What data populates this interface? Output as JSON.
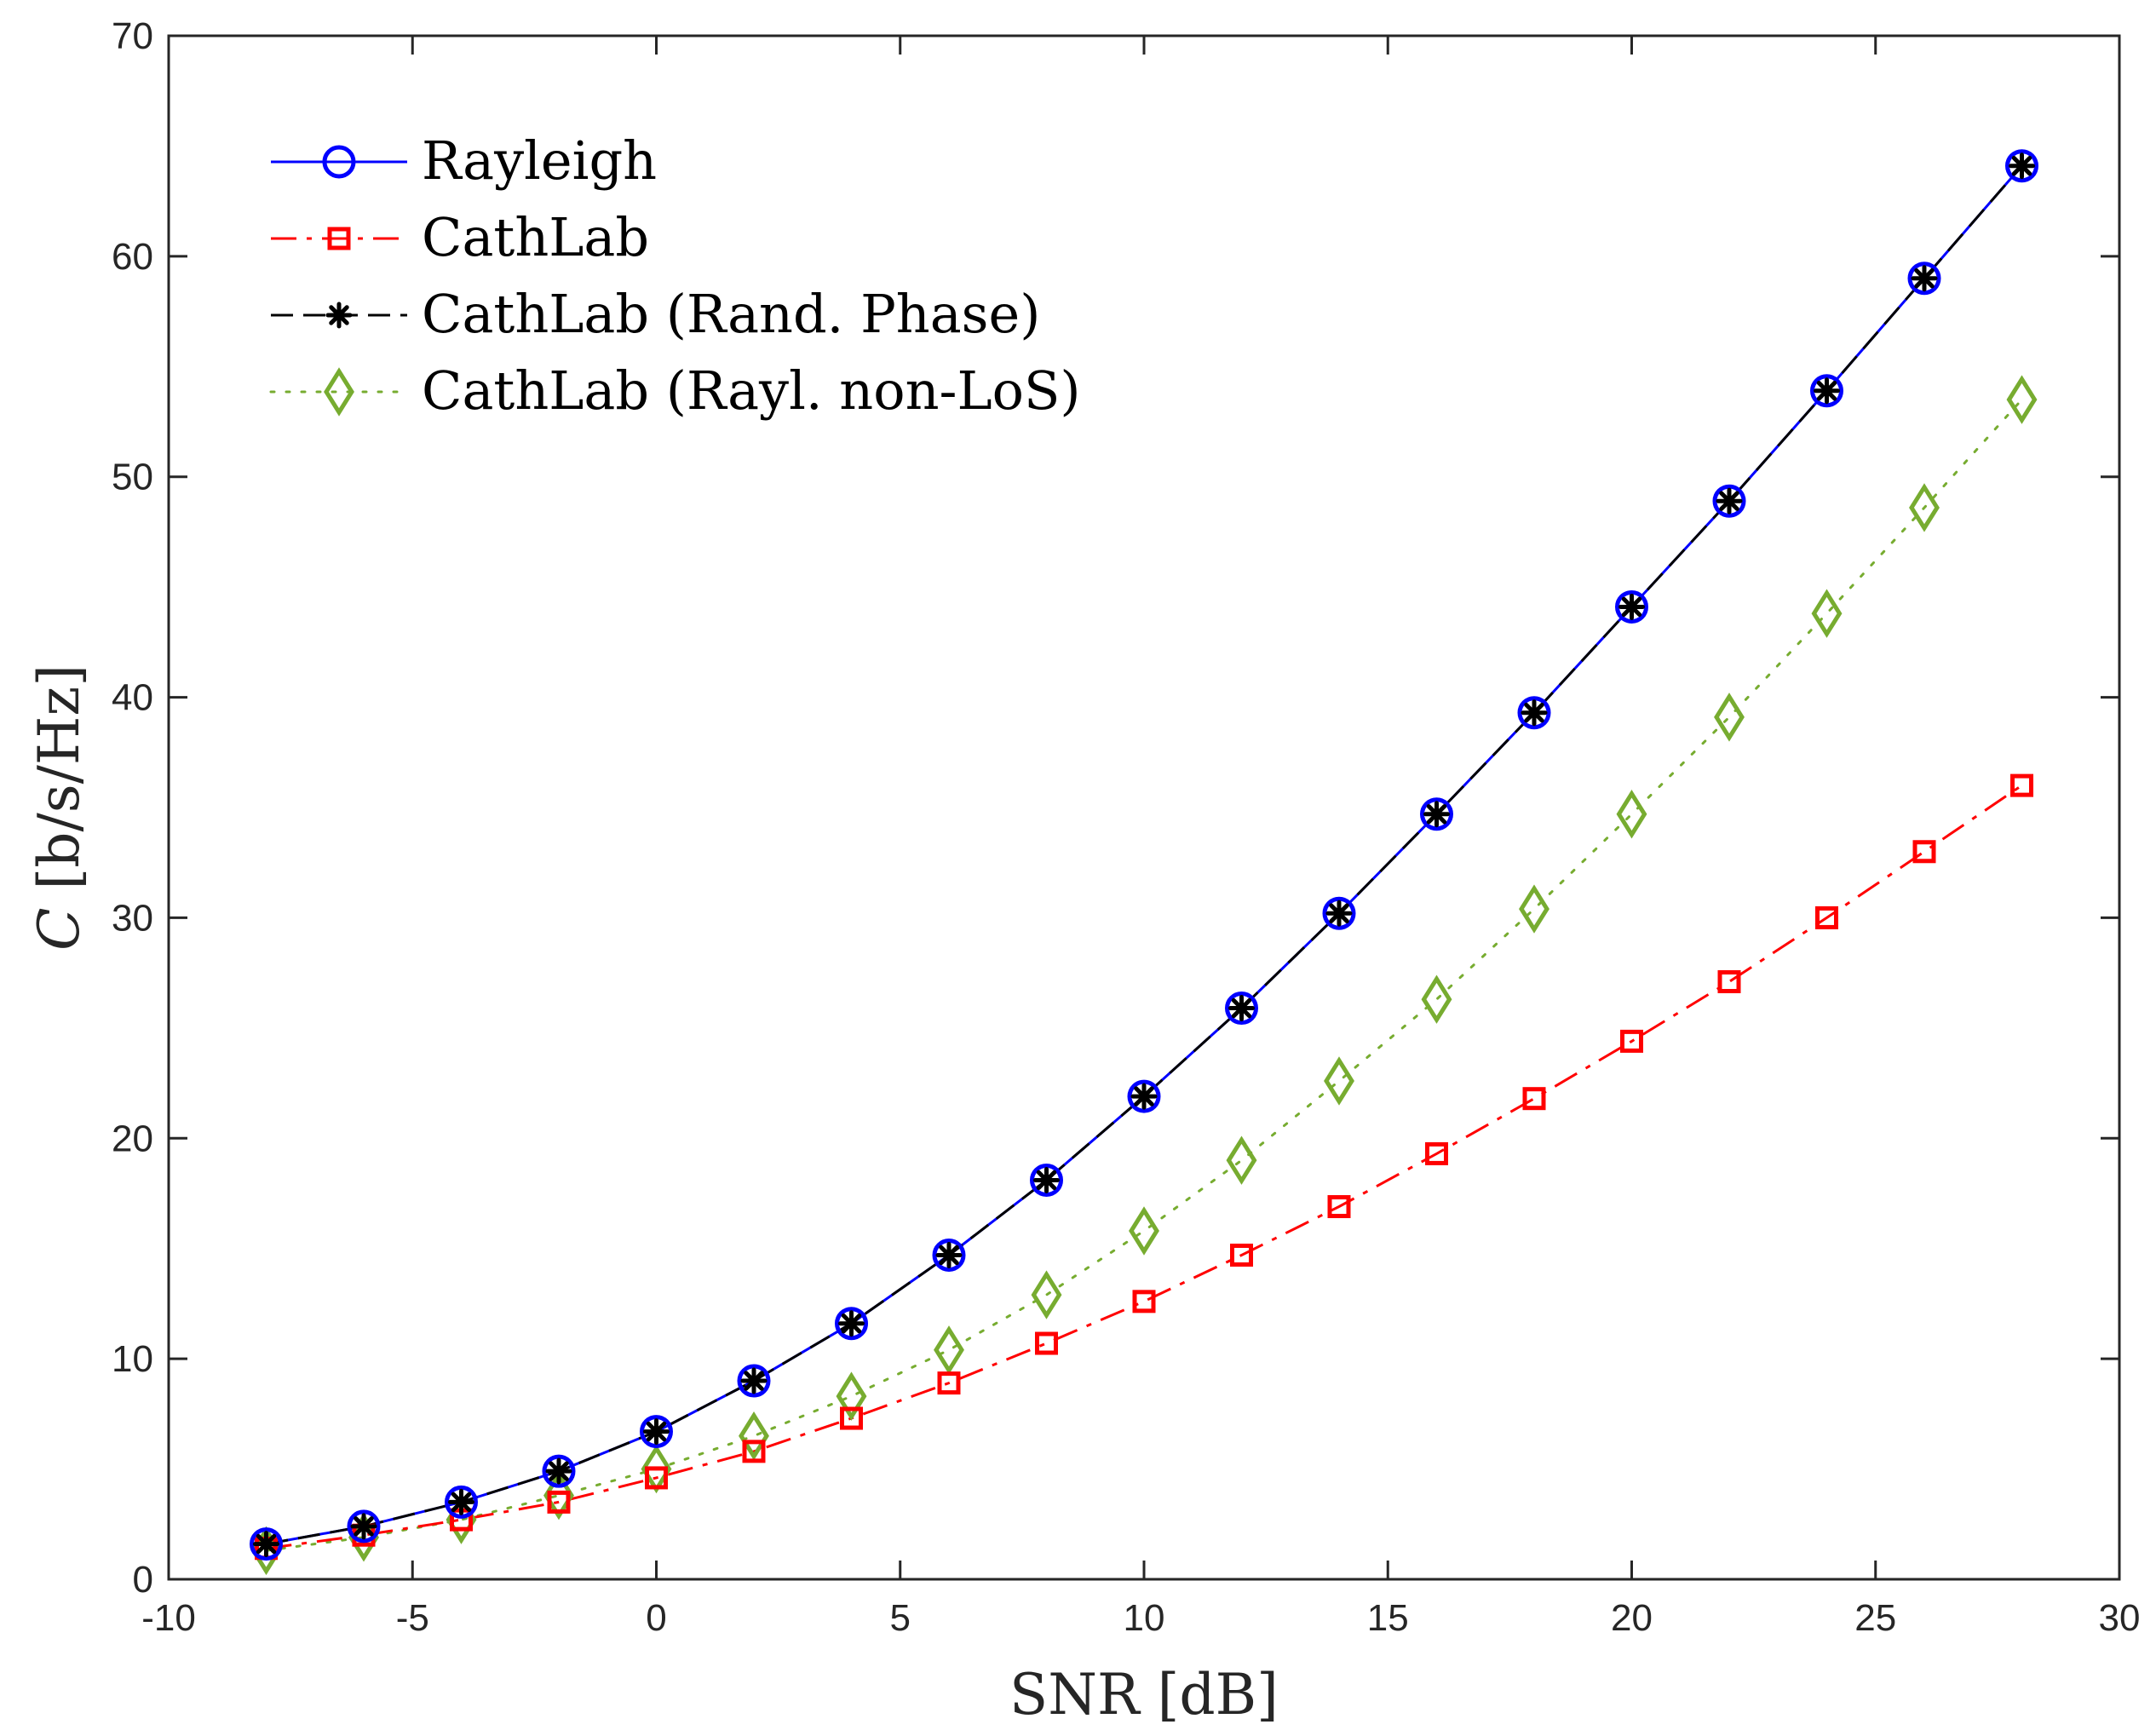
{
  "chart_data": {
    "type": "line",
    "title": "",
    "xlabel": "SNR [dB]",
    "ylabel_symbol": "C",
    "ylabel_unit": "[b/s/Hz]",
    "xlim": [
      -10,
      30
    ],
    "ylim": [
      0,
      70
    ],
    "xticks": [
      -10,
      -5,
      0,
      5,
      10,
      15,
      20,
      25,
      30
    ],
    "yticks": [
      0,
      10,
      20,
      30,
      40,
      50,
      60,
      70
    ],
    "grid": false,
    "legend_position": "top-left",
    "x": [
      -8,
      -6,
      -4,
      -2,
      0,
      2,
      4,
      6,
      8,
      10,
      12,
      14,
      16,
      18,
      20,
      22,
      24,
      26,
      28
    ],
    "series": [
      {
        "name": "Rayleigh",
        "color": "#0000ff",
        "line_style": "solid",
        "marker": "circle",
        "values": [
          1.6,
          2.4,
          3.5,
          4.9,
          6.7,
          9.0,
          11.6,
          14.7,
          18.1,
          21.9,
          25.9,
          30.2,
          34.7,
          39.3,
          44.1,
          48.9,
          53.9,
          59.0,
          64.1
        ]
      },
      {
        "name": "CathLab",
        "color": "#ff0000",
        "line_style": "dashdot",
        "marker": "square",
        "values": [
          1.4,
          2.0,
          2.7,
          3.5,
          4.6,
          5.8,
          7.3,
          8.9,
          10.7,
          12.6,
          14.7,
          16.9,
          19.3,
          21.8,
          24.4,
          27.1,
          30.0,
          33.0,
          36.0
        ]
      },
      {
        "name": "CathLab (Rand. Phase)",
        "color": "#000000",
        "line_style": "dashed",
        "marker": "asterisk",
        "values": [
          1.6,
          2.4,
          3.5,
          4.9,
          6.7,
          9.0,
          11.6,
          14.7,
          18.1,
          21.9,
          25.9,
          30.2,
          34.7,
          39.3,
          44.1,
          48.9,
          53.9,
          59.0,
          64.1
        ]
      },
      {
        "name": "CathLab (Rayl. non-LoS)",
        "color": "#77ac30",
        "line_style": "dotted",
        "marker": "diamond",
        "values": [
          1.3,
          1.9,
          2.7,
          3.8,
          5.0,
          6.5,
          8.3,
          10.4,
          12.9,
          15.8,
          19.0,
          22.6,
          26.3,
          30.4,
          34.7,
          39.1,
          43.8,
          48.6,
          53.5
        ]
      }
    ]
  }
}
